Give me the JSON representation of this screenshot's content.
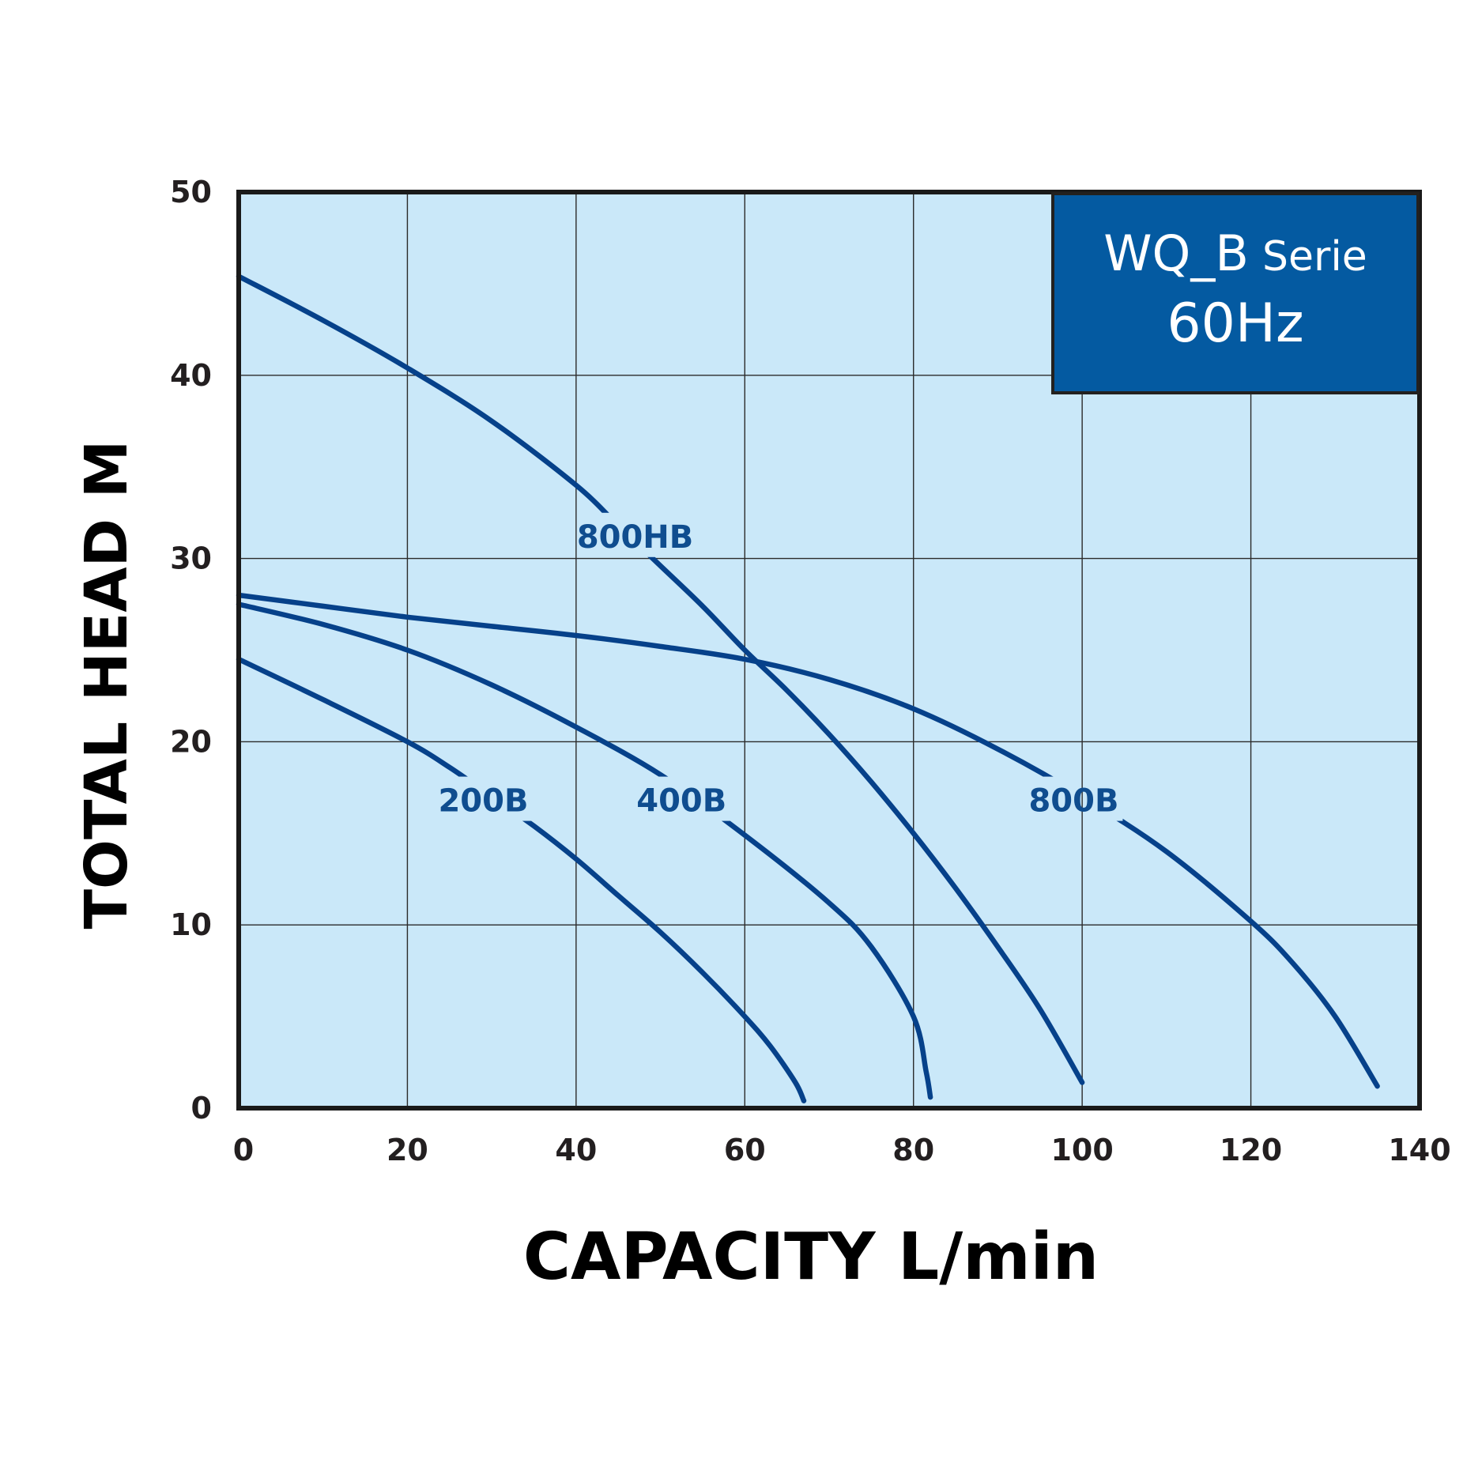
{
  "colors": {
    "plot_bg": "#cae8f9",
    "grid": "#2b2b2b",
    "frame": "#1a1a1a",
    "curve": "#06418a",
    "label": "#0f4d8f",
    "legend_bg": "#045aa1",
    "legend_border": "#23211f",
    "legend_text": "#ffffff"
  },
  "legend": {
    "line1_main": "WQ_B",
    "line1_sub": "Serie",
    "line2": "60Hz"
  },
  "chart_data": {
    "type": "line",
    "xlabel": "CAPACITY L/min",
    "ylabel": "TOTAL HEAD M",
    "xlim": [
      0,
      140
    ],
    "ylim": [
      0,
      50
    ],
    "x_ticks": [
      "0",
      "20",
      "40",
      "60",
      "80",
      "100",
      "120",
      "140"
    ],
    "y_ticks": [
      "0",
      "10",
      "20",
      "30",
      "40",
      "50"
    ],
    "grid": true,
    "series": [
      {
        "name": "800HB",
        "points": [
          [
            0,
            45.4
          ],
          [
            10,
            43
          ],
          [
            20,
            40.4
          ],
          [
            30,
            37.5
          ],
          [
            40,
            34
          ],
          [
            45,
            31.8
          ],
          [
            50,
            29.6
          ],
          [
            55,
            27.4
          ],
          [
            60,
            25
          ],
          [
            65,
            22.8
          ],
          [
            70,
            20.4
          ],
          [
            75,
            17.8
          ],
          [
            80,
            15
          ],
          [
            85,
            12
          ],
          [
            90,
            8.8
          ],
          [
            95,
            5.4
          ],
          [
            100,
            1.4
          ]
        ]
      },
      {
        "name": "800B",
        "points": [
          [
            0,
            28.0
          ],
          [
            10,
            27.4
          ],
          [
            20,
            26.8
          ],
          [
            30,
            26.3
          ],
          [
            40,
            25.8
          ],
          [
            50,
            25.2
          ],
          [
            60,
            24.5
          ],
          [
            70,
            23.4
          ],
          [
            80,
            21.8
          ],
          [
            90,
            19.6
          ],
          [
            100,
            17.0
          ],
          [
            110,
            14.0
          ],
          [
            120,
            10.2
          ],
          [
            125,
            7.9
          ],
          [
            130,
            5.0
          ],
          [
            135,
            1.2
          ]
        ]
      },
      {
        "name": "400B",
        "points": [
          [
            0,
            27.5
          ],
          [
            10,
            26.4
          ],
          [
            20,
            25.0
          ],
          [
            30,
            23.1
          ],
          [
            40,
            20.8
          ],
          [
            50,
            18.2
          ],
          [
            60,
            14.9
          ],
          [
            70,
            11.2
          ],
          [
            75,
            8.8
          ],
          [
            80,
            5.0
          ],
          [
            81.5,
            2.0
          ],
          [
            82,
            0.6
          ]
        ]
      },
      {
        "name": "200B",
        "points": [
          [
            0,
            24.5
          ],
          [
            10,
            22.3
          ],
          [
            20,
            20.0
          ],
          [
            25,
            18.6
          ],
          [
            30,
            17.0
          ],
          [
            35,
            15.4
          ],
          [
            40,
            13.6
          ],
          [
            45,
            11.6
          ],
          [
            50,
            9.6
          ],
          [
            55,
            7.4
          ],
          [
            60,
            5.0
          ],
          [
            63,
            3.4
          ],
          [
            66,
            1.4
          ],
          [
            67,
            0.4
          ]
        ]
      }
    ],
    "labels": [
      {
        "series": "800HB",
        "text": "800HB",
        "x": 47,
        "y": 31.2
      },
      {
        "series": "800B",
        "text": "800B",
        "x": 99,
        "y": 16.8
      },
      {
        "series": "400B",
        "text": "400B",
        "x": 52.5,
        "y": 16.8
      },
      {
        "series": "200B",
        "text": "200B",
        "x": 29,
        "y": 16.8
      }
    ]
  }
}
